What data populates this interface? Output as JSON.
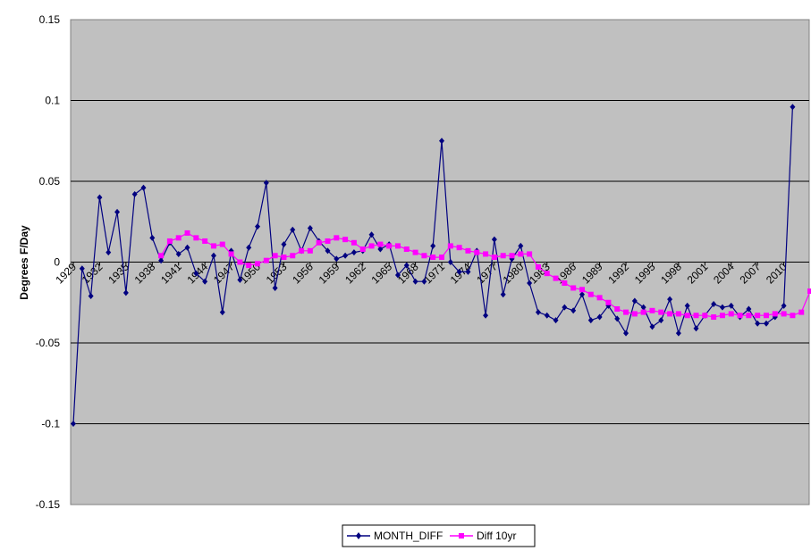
{
  "chart_data": {
    "type": "line",
    "ylabel": "Degrees F/Day",
    "xlabel": "",
    "title": "",
    "ylim": [
      -0.15,
      0.15
    ],
    "yticks": [
      0.15,
      0.1,
      0.05,
      0,
      -0.05,
      -0.1,
      -0.15
    ],
    "ytick_labels": [
      "0.15",
      "0.1",
      "0.05",
      "0",
      "-0.05",
      "-0.1",
      "-0.15"
    ],
    "x_start": 1929,
    "x_end": 2013,
    "xtick_labels": [
      "1929",
      "1932",
      "1935",
      "1938",
      "1941",
      "1944",
      "1947",
      "1950",
      "1953",
      "1956",
      "1959",
      "1962",
      "1965",
      "1968",
      "1971",
      "1974",
      "1977",
      "1980",
      "1983",
      "1986",
      "1989",
      "1992",
      "1995",
      "1998",
      "2001",
      "2004",
      "2007",
      "2010"
    ],
    "grid": true,
    "legend_position": "bottom",
    "colors": {
      "plot_bg": "#c0c0c0",
      "month_diff": "#000080",
      "diff_10yr": "#ff00ff",
      "grid": "#000000"
    },
    "series": [
      {
        "name": "MONTH_DIFF",
        "marker": "diamond",
        "values": [
          -0.1,
          -0.004,
          -0.021,
          0.04,
          0.006,
          0.031,
          -0.019,
          0.042,
          0.046,
          0.015,
          0.001,
          0.012,
          0.005,
          0.009,
          -0.007,
          -0.012,
          0.004,
          -0.031,
          0.007,
          -0.011,
          0.009,
          0.022,
          0.049,
          -0.016,
          0.011,
          0.02,
          0.007,
          0.021,
          0.013,
          0.007,
          0.002,
          0.004,
          0.006,
          0.007,
          0.017,
          0.008,
          0.011,
          -0.008,
          -0.002,
          -0.012,
          -0.012,
          0.01,
          0.075,
          0.0,
          -0.006,
          -0.006,
          0.007,
          -0.033,
          0.014,
          -0.02,
          0.002,
          0.01,
          -0.013,
          -0.031,
          -0.033,
          -0.036,
          -0.028,
          -0.03,
          -0.02,
          -0.036,
          -0.034,
          -0.027,
          -0.035,
          -0.044,
          -0.024,
          -0.028,
          -0.04,
          -0.036,
          -0.023,
          -0.044,
          -0.027,
          -0.041,
          -0.033,
          -0.026,
          -0.028,
          -0.027,
          -0.034,
          -0.029,
          -0.038,
          -0.038,
          -0.034,
          -0.027,
          0.096
        ]
      },
      {
        "name": "Diff 10yr",
        "marker": "square",
        "x_offset": 10,
        "values": [
          0.004,
          0.013,
          0.015,
          0.018,
          0.015,
          0.013,
          0.01,
          0.011,
          0.005,
          0.0,
          -0.002,
          -0.001,
          0.001,
          0.004,
          0.003,
          0.004,
          0.007,
          0.007,
          0.012,
          0.013,
          0.015,
          0.014,
          0.012,
          0.008,
          0.01,
          0.011,
          0.01,
          0.01,
          0.008,
          0.006,
          0.004,
          0.003,
          0.003,
          0.01,
          0.009,
          0.007,
          0.006,
          0.005,
          0.003,
          0.004,
          0.004,
          0.005,
          0.005,
          -0.003,
          -0.007,
          -0.01,
          -0.013,
          -0.016,
          -0.017,
          -0.02,
          -0.022,
          -0.025,
          -0.029,
          -0.031,
          -0.032,
          -0.031,
          -0.03,
          -0.031,
          -0.032,
          -0.032,
          -0.033,
          -0.033,
          -0.033,
          -0.034,
          -0.033,
          -0.032,
          -0.033,
          -0.033,
          -0.033,
          -0.033,
          -0.032,
          -0.032,
          -0.033,
          -0.031,
          -0.018
        ]
      }
    ]
  }
}
